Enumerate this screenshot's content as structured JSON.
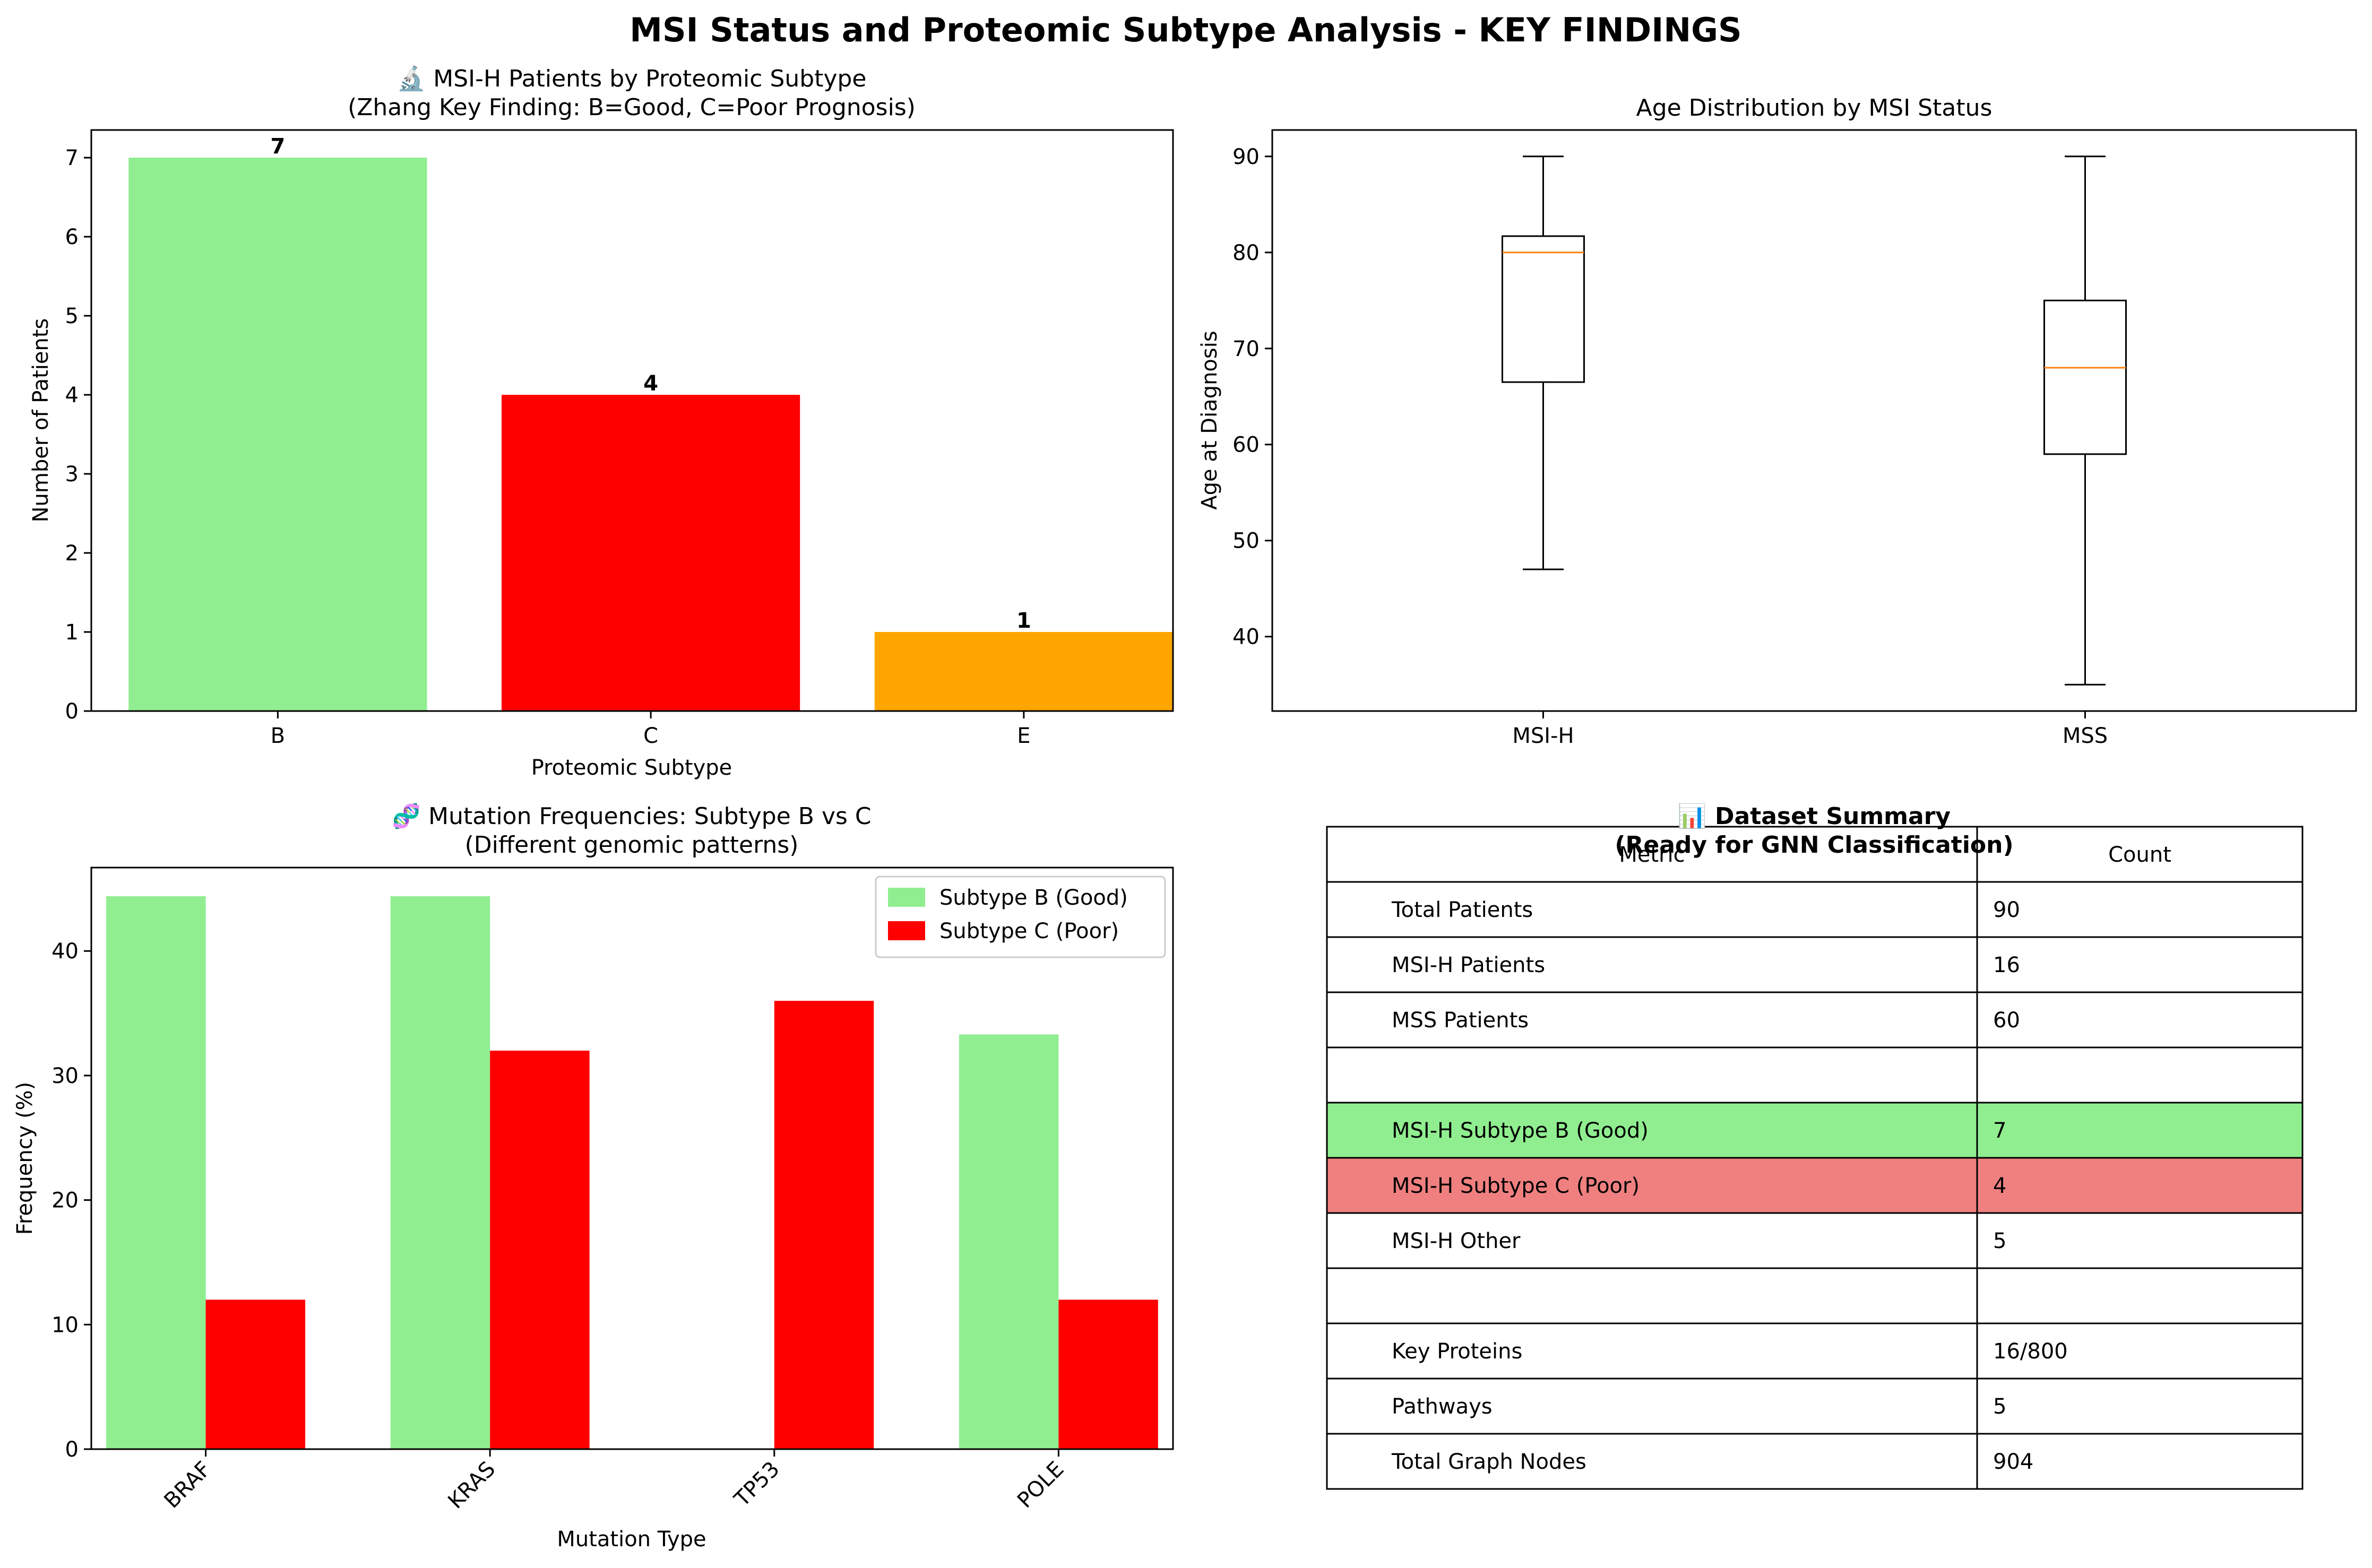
{
  "figure": {
    "suptitle": "MSI Status and Proteomic Subtype Analysis - KEY FINDINGS"
  },
  "chart_data": [
    {
      "type": "bar",
      "title": "🔬 MSI-H Patients by Proteomic Subtype",
      "subtitle": "(Zhang Key Finding: B=Good, C=Poor Prognosis)",
      "xlabel": "Proteomic Subtype",
      "ylabel": "Number of Patients",
      "categories": [
        "B",
        "C",
        "E"
      ],
      "values": [
        7,
        4,
        1
      ],
      "colors": [
        "#90ee90",
        "#ff0000",
        "#ffa500"
      ],
      "ylim": [
        0,
        7.35
      ],
      "yticks": [
        0,
        1,
        2,
        3,
        4,
        5,
        6,
        7
      ],
      "data_labels": true,
      "grid": false
    },
    {
      "type": "box",
      "title": "Age Distribution by MSI Status",
      "ylabel": "Age at Diagnosis",
      "categories": [
        "MSI-H",
        "MSS"
      ],
      "boxes": [
        {
          "whisker_low": 47,
          "q1": 66.5,
          "median": 80,
          "q3": 81.7,
          "whisker_high": 90
        },
        {
          "whisker_low": 35,
          "q1": 59,
          "median": 68,
          "q3": 75,
          "whisker_high": 90
        }
      ],
      "median_color": "#ff7f0e",
      "ylim": [
        32.25,
        92.75
      ],
      "yticks": [
        40,
        50,
        60,
        70,
        80,
        90
      ],
      "grid": false
    },
    {
      "type": "bar",
      "title": "🧬 Mutation Frequencies: Subtype B vs C",
      "subtitle": "(Different genomic patterns)",
      "xlabel": "Mutation Type",
      "ylabel": "Frequency (%)",
      "categories": [
        "BRAF",
        "KRAS",
        "TP53",
        "POLE"
      ],
      "series": [
        {
          "name": "Subtype B (Good)",
          "color": "#90ee90",
          "values": [
            44.4,
            44.4,
            0,
            33.3
          ]
        },
        {
          "name": "Subtype C (Poor)",
          "color": "#ff0000",
          "values": [
            12,
            32,
            36,
            12
          ]
        }
      ],
      "ylim": [
        0,
        46.7
      ],
      "yticks": [
        0,
        10,
        20,
        30,
        40
      ],
      "legend": "top-right",
      "tick_rotation": 45,
      "grid": false
    },
    {
      "type": "table",
      "title": "📊 Dataset Summary",
      "subtitle": "(Ready for GNN Classification)",
      "headers": [
        "Metric",
        "Count"
      ],
      "rows": [
        {
          "metric": "Total Patients",
          "count": "90",
          "fill": "#ffffff"
        },
        {
          "metric": "MSI-H Patients",
          "count": "16",
          "fill": "#ffffff"
        },
        {
          "metric": "MSS Patients",
          "count": "60",
          "fill": "#ffffff"
        },
        {
          "metric": "",
          "count": "",
          "fill": "#ffffff"
        },
        {
          "metric": "MSI-H Subtype B (Good)",
          "count": "7",
          "fill": "#90ee90"
        },
        {
          "metric": "MSI-H Subtype C (Poor)",
          "count": "4",
          "fill": "#f08080"
        },
        {
          "metric": "MSI-H Other",
          "count": "5",
          "fill": "#ffffff"
        },
        {
          "metric": "",
          "count": "",
          "fill": "#ffffff"
        },
        {
          "metric": "Key Proteins",
          "count": "16/800",
          "fill": "#ffffff"
        },
        {
          "metric": "Pathways",
          "count": "5",
          "fill": "#ffffff"
        },
        {
          "metric": "Total Graph Nodes",
          "count": "904",
          "fill": "#ffffff"
        }
      ]
    }
  ]
}
